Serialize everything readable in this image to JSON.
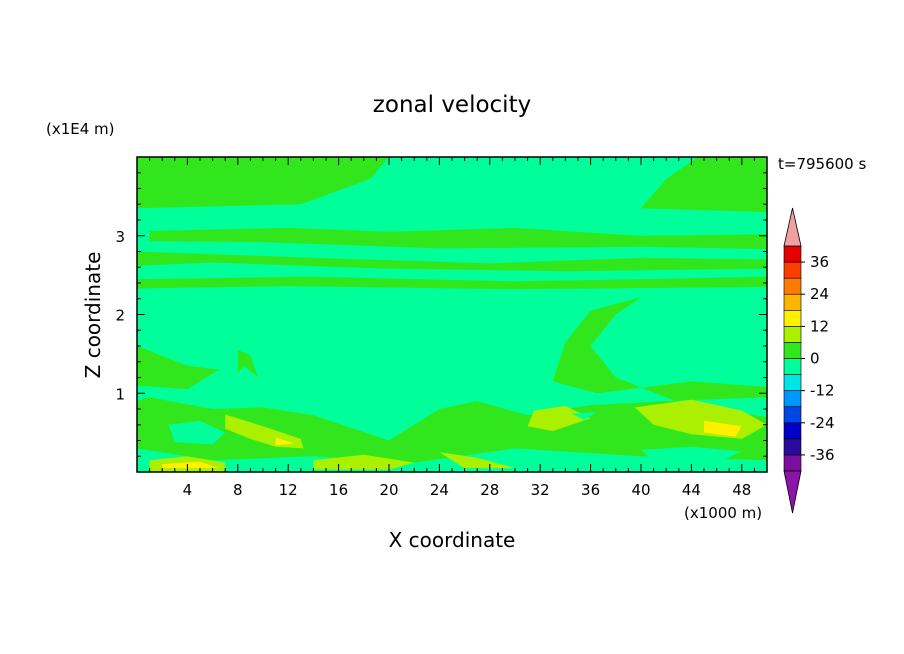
{
  "chart_data": {
    "type": "heatmap",
    "title": "zonal velocity",
    "xlabel": "X coordinate",
    "ylabel": "Z coordinate",
    "x_unit": "(x1000 m)",
    "y_unit": "(x1E4 m)",
    "time_label": "t=795600 s",
    "xlim": [
      0,
      50
    ],
    "ylim": [
      0,
      4
    ],
    "x_ticks": [
      4,
      8,
      12,
      16,
      20,
      24,
      28,
      32,
      36,
      40,
      44,
      48
    ],
    "y_ticks": [
      1,
      2,
      3
    ],
    "colorbar": {
      "levels": [
        -42,
        -36,
        -30,
        -24,
        -18,
        -12,
        -6,
        0,
        6,
        12,
        18,
        24,
        30,
        36
      ],
      "labels": [
        36,
        24,
        12,
        0,
        -12,
        -24,
        -36
      ],
      "colors": [
        "#7a0f9e",
        "#2a0a9e",
        "#0000c8",
        "#0046e6",
        "#0096ff",
        "#00e6e6",
        "#00ff9a",
        "#32e61e",
        "#aaf000",
        "#fff000",
        "#ffb400",
        "#ff7a00",
        "#ff3c00",
        "#e60000"
      ],
      "over_color": "#f0a0a0",
      "under_color": "#8c14aa"
    },
    "field_regions": [
      {
        "level": 0,
        "polygon": [
          [
            0,
            4
          ],
          [
            20,
            4
          ],
          [
            18.5,
            3.72
          ],
          [
            13,
            3.4
          ],
          [
            0,
            3.35
          ]
        ]
      },
      {
        "level": 0,
        "polygon": [
          [
            40,
            3.35
          ],
          [
            42,
            3.72
          ],
          [
            44.5,
            4
          ],
          [
            50,
            4
          ],
          [
            50,
            3.3
          ]
        ]
      },
      {
        "level": 0,
        "polygon": [
          [
            1,
            3.06
          ],
          [
            12,
            3.1
          ],
          [
            20,
            3.05
          ],
          [
            30,
            3.1
          ],
          [
            40,
            3.0
          ],
          [
            50,
            3.02
          ],
          [
            50,
            2.83
          ],
          [
            40,
            2.86
          ],
          [
            24,
            2.84
          ],
          [
            10,
            2.92
          ],
          [
            1,
            2.93
          ]
        ]
      },
      {
        "level": 0,
        "polygon": [
          [
            0,
            2.8
          ],
          [
            14,
            2.72
          ],
          [
            28,
            2.65
          ],
          [
            40,
            2.72
          ],
          [
            50,
            2.7
          ],
          [
            50,
            2.58
          ],
          [
            34,
            2.55
          ],
          [
            20,
            2.58
          ],
          [
            6,
            2.66
          ],
          [
            0,
            2.62
          ]
        ]
      },
      {
        "level": 0,
        "polygon": [
          [
            0,
            2.45
          ],
          [
            14,
            2.48
          ],
          [
            30,
            2.42
          ],
          [
            40,
            2.45
          ],
          [
            50,
            2.48
          ],
          [
            50,
            2.35
          ],
          [
            30,
            2.32
          ],
          [
            12,
            2.36
          ],
          [
            0,
            2.33
          ]
        ]
      },
      {
        "level": 0,
        "polygon": [
          [
            0,
            1.6
          ],
          [
            4,
            1.35
          ],
          [
            6.5,
            1.3
          ],
          [
            4,
            1.05
          ],
          [
            0,
            1.1
          ]
        ]
      },
      {
        "level": 0,
        "polygon": [
          [
            40,
            2.22
          ],
          [
            36,
            2.05
          ],
          [
            34,
            1.65
          ],
          [
            33,
            1.15
          ],
          [
            36.5,
            1.0
          ],
          [
            44,
            1.15
          ],
          [
            50,
            1.08
          ],
          [
            50,
            0.95
          ],
          [
            42,
            0.9
          ],
          [
            36,
            0.85
          ],
          [
            31,
            0.72
          ],
          [
            27,
            0.9
          ],
          [
            24,
            0.8
          ],
          [
            22,
            0.6
          ],
          [
            20,
            0.4
          ],
          [
            14,
            0.72
          ],
          [
            10,
            0.82
          ],
          [
            6,
            0.8
          ],
          [
            1,
            0.95
          ],
          [
            0,
            0.9
          ],
          [
            0,
            0.3
          ],
          [
            6,
            0.15
          ],
          [
            14,
            0.2
          ],
          [
            22,
            0.12
          ],
          [
            30,
            0.3
          ],
          [
            40,
            0.2
          ],
          [
            50,
            0.15
          ],
          [
            50,
            0.7
          ],
          [
            44,
            0.82
          ],
          [
            38,
            1.2
          ],
          [
            36,
            1.6
          ],
          [
            38,
            2.0
          ]
        ]
      },
      {
        "level": 0,
        "polygon": [
          [
            8,
            1.55
          ],
          [
            9,
            1.48
          ],
          [
            9.6,
            1.2
          ],
          [
            8.5,
            1.35
          ],
          [
            8,
            1.25
          ]
        ]
      },
      {
        "level": 6,
        "polygon": [
          [
            7,
            0.73
          ],
          [
            10,
            0.58
          ],
          [
            13,
            0.42
          ],
          [
            13.2,
            0.3
          ],
          [
            11,
            0.32
          ],
          [
            9,
            0.42
          ],
          [
            7,
            0.55
          ]
        ]
      },
      {
        "level": 6,
        "polygon": [
          [
            31.5,
            0.78
          ],
          [
            34,
            0.84
          ],
          [
            36,
            0.68
          ],
          [
            33,
            0.52
          ],
          [
            31,
            0.58
          ]
        ]
      },
      {
        "level": 6,
        "polygon": [
          [
            39.5,
            0.82
          ],
          [
            44,
            0.92
          ],
          [
            48,
            0.78
          ],
          [
            50,
            0.6
          ],
          [
            48,
            0.42
          ],
          [
            44,
            0.48
          ],
          [
            41,
            0.6
          ]
        ]
      },
      {
        "level": 6,
        "polygon": [
          [
            1,
            0.15
          ],
          [
            4,
            0.2
          ],
          [
            7,
            0.12
          ],
          [
            7,
            0.01
          ],
          [
            1,
            0.01
          ]
        ]
      },
      {
        "level": 6,
        "polygon": [
          [
            14,
            0.15
          ],
          [
            18,
            0.22
          ],
          [
            22,
            0.12
          ],
          [
            20,
            0.03
          ],
          [
            14,
            0.03
          ]
        ]
      },
      {
        "level": 6,
        "polygon": [
          [
            24,
            0.25
          ],
          [
            27,
            0.18
          ],
          [
            30,
            0.05
          ],
          [
            26,
            0.05
          ]
        ]
      },
      {
        "level": 12,
        "polygon": [
          [
            45,
            0.65
          ],
          [
            48,
            0.58
          ],
          [
            47.5,
            0.45
          ],
          [
            45,
            0.5
          ]
        ]
      },
      {
        "level": 12,
        "polygon": [
          [
            2,
            0.1
          ],
          [
            5,
            0.13
          ],
          [
            6.5,
            0.05
          ],
          [
            2,
            0.05
          ]
        ]
      },
      {
        "level": 12,
        "polygon": [
          [
            11,
            0.44
          ],
          [
            12.5,
            0.36
          ],
          [
            11,
            0.34
          ]
        ]
      },
      {
        "level": -6,
        "polygon": [
          [
            2.5,
            0.6
          ],
          [
            5,
            0.65
          ],
          [
            7,
            0.5
          ],
          [
            6,
            0.35
          ],
          [
            3,
            0.38
          ]
        ]
      },
      {
        "level": -6,
        "polygon": [
          [
            40,
            0.28
          ],
          [
            44,
            0.32
          ],
          [
            48,
            0.26
          ],
          [
            46,
            0.12
          ],
          [
            41,
            0.15
          ]
        ]
      },
      {
        "level": -6,
        "polygon": [
          [
            30,
            0.12
          ],
          [
            34,
            0.15
          ],
          [
            36,
            0.02
          ],
          [
            30,
            0.02
          ]
        ]
      },
      {
        "level": -6,
        "polygon": [
          [
            45,
            1.22
          ],
          [
            47.5,
            1.25
          ],
          [
            47,
            1.15
          ],
          [
            45,
            1.16
          ]
        ]
      },
      {
        "level": -6,
        "polygon": [
          [
            34.5,
            0.74
          ],
          [
            36.5,
            0.76
          ],
          [
            35.5,
            0.66
          ]
        ]
      }
    ]
  }
}
